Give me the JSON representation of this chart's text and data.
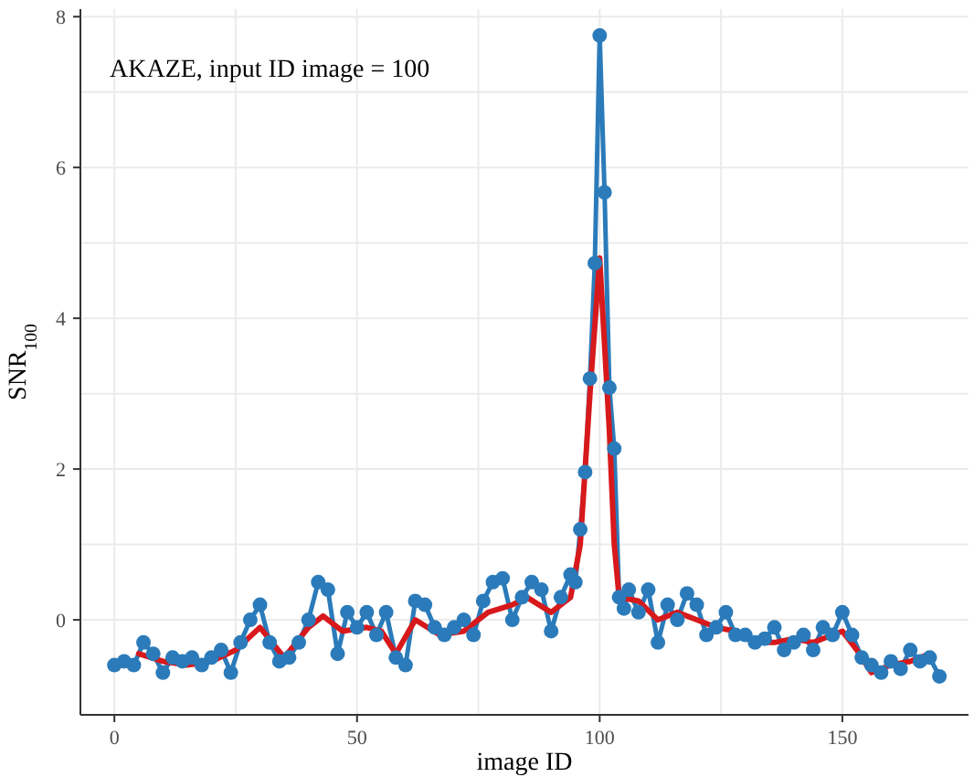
{
  "chart_data": {
    "type": "line",
    "xlabel": "image ID",
    "ylabel": "SNR$_{100}$",
    "annotations": [
      "AKAZE, input ID image = 100"
    ],
    "xlim": [
      -7,
      176
    ],
    "ylim": [
      -1.26,
      8.1
    ],
    "xticks": [
      0,
      {
        "value": 25,
        "label": null
      },
      50,
      {
        "value": 75,
        "label": null
      },
      100,
      {
        "value": 125,
        "label": null
      },
      150
    ],
    "yticks": [
      0,
      {
        "value": 1,
        "label": null
      },
      2,
      {
        "value": 3,
        "label": null
      },
      4,
      {
        "value": 5,
        "label": null
      },
      6,
      {
        "value": 7,
        "label": null
      },
      8
    ],
    "grid": true,
    "marker": "circle",
    "line_style": "solid",
    "series": [
      {
        "color": "#2b7bba",
        "x": [
          0,
          2,
          4,
          6,
          8,
          10,
          12,
          14,
          16,
          18,
          20,
          22,
          24,
          26,
          28,
          30,
          32,
          34,
          36,
          38,
          40,
          42,
          44,
          46,
          48,
          50,
          52,
          54,
          56,
          58,
          60,
          62,
          64,
          66,
          68,
          70,
          72,
          74,
          76,
          78,
          80,
          82,
          84,
          86,
          88,
          90,
          92,
          94,
          95,
          96,
          97,
          98,
          99,
          100,
          101,
          102,
          103,
          104,
          105,
          106,
          108,
          110,
          112,
          114,
          116,
          118,
          120,
          122,
          124,
          126,
          128,
          130,
          132,
          134,
          136,
          138,
          140,
          142,
          144,
          146,
          148,
          150,
          152,
          154,
          156,
          158,
          160,
          162,
          164,
          166,
          168,
          170
        ],
        "values": [
          -0.6,
          -0.55,
          -0.6,
          -0.3,
          -0.45,
          -0.7,
          -0.5,
          -0.55,
          -0.5,
          -0.6,
          -0.5,
          -0.4,
          -0.7,
          -0.3,
          0.0,
          0.2,
          -0.3,
          -0.55,
          -0.5,
          -0.3,
          0.0,
          0.5,
          0.4,
          -0.45,
          0.1,
          -0.1,
          0.1,
          -0.2,
          0.1,
          -0.5,
          -0.6,
          0.25,
          0.2,
          -0.1,
          -0.2,
          -0.1,
          0.0,
          -0.2,
          0.25,
          0.5,
          0.55,
          0.0,
          0.3,
          0.5,
          0.4,
          -0.15,
          0.3,
          0.6,
          0.5,
          1.2,
          1.96,
          3.2,
          4.73,
          7.75,
          5.67,
          3.08,
          2.27,
          0.3,
          0.15,
          0.4,
          0.1,
          0.4,
          -0.3,
          0.2,
          0.0,
          0.35,
          0.2,
          -0.2,
          -0.1,
          0.1,
          -0.2,
          -0.2,
          -0.3,
          -0.25,
          -0.1,
          -0.4,
          -0.3,
          -0.2,
          -0.4,
          -0.1,
          -0.2,
          0.1,
          -0.2,
          -0.5,
          -0.6,
          -0.7,
          -0.55,
          -0.65,
          -0.4,
          -0.55,
          -0.5,
          -0.75
        ]
      },
      {
        "color": "#d7191c",
        "type": "line",
        "marker": "none",
        "x": [
          5,
          10,
          15,
          20,
          25,
          30,
          35,
          40,
          43,
          47,
          52,
          55,
          58,
          62,
          67,
          72,
          77,
          82,
          85,
          90,
          94,
          96,
          98,
          100,
          102,
          103,
          104,
          108,
          112,
          116,
          120,
          124,
          128,
          132,
          136,
          140,
          144,
          148,
          150,
          153,
          156,
          160,
          164,
          168
        ],
        "values": [
          -0.45,
          -0.55,
          -0.6,
          -0.55,
          -0.4,
          -0.1,
          -0.5,
          -0.1,
          0.05,
          -0.15,
          -0.1,
          -0.15,
          -0.45,
          0.0,
          -0.2,
          -0.15,
          0.1,
          0.2,
          0.3,
          0.1,
          0.3,
          1.0,
          3.0,
          4.8,
          2.5,
          1.0,
          0.3,
          0.25,
          0.0,
          0.1,
          0.0,
          -0.1,
          -0.15,
          -0.3,
          -0.3,
          -0.25,
          -0.3,
          -0.2,
          -0.15,
          -0.4,
          -0.7,
          -0.6,
          -0.55,
          -0.45
        ]
      }
    ]
  }
}
